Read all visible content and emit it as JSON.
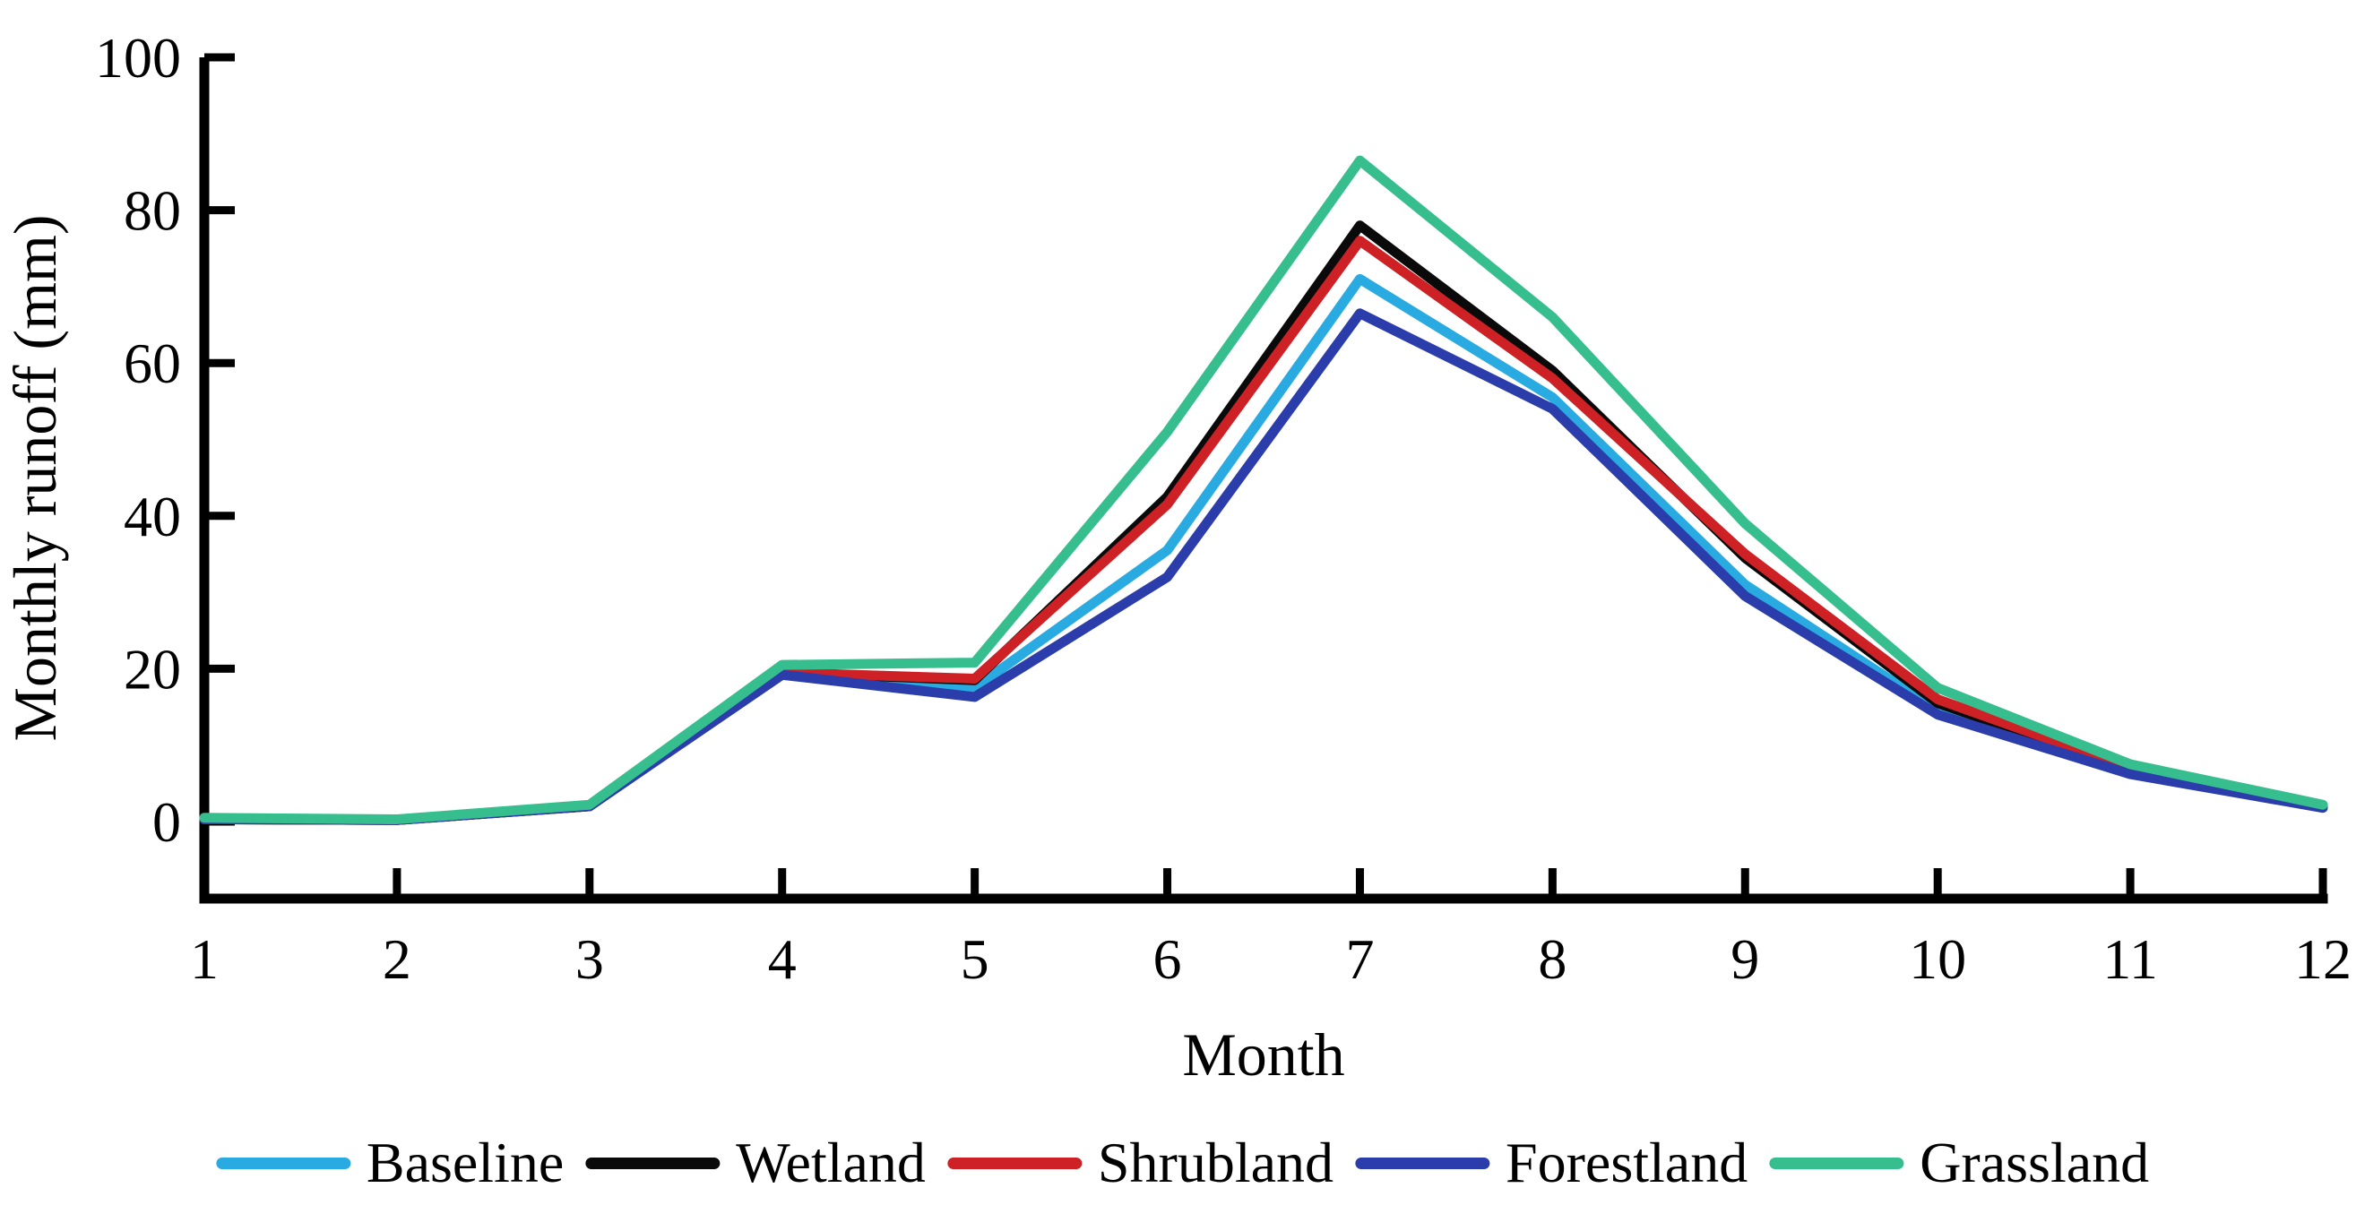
{
  "figure": {
    "background_color": "#ffffff",
    "axis_color": "#000000"
  },
  "chart_data": {
    "type": "line",
    "title": "",
    "xlabel": "Month",
    "ylabel": "Monthly runoff (mm)",
    "x": [
      1,
      2,
      3,
      4,
      5,
      6,
      7,
      8,
      9,
      10,
      11,
      12
    ],
    "xticks": [
      1,
      2,
      3,
      4,
      5,
      6,
      7,
      8,
      9,
      10,
      11,
      12
    ],
    "yticks": [
      0,
      20,
      40,
      60,
      80,
      100
    ],
    "xlim": [
      1,
      12
    ],
    "ylim": [
      -10,
      100
    ],
    "grid": false,
    "legend_position": "bottom",
    "series": [
      {
        "name": "Baseline",
        "color": "#29abe2",
        "values": [
          0.3,
          0.2,
          2.0,
          19.3,
          17.5,
          35.5,
          71.0,
          55.5,
          31.0,
          14.5,
          6.5,
          2.0
        ]
      },
      {
        "name": "Wetland",
        "color": "#0a0a0a",
        "values": [
          0.3,
          0.2,
          2.0,
          19.5,
          18.5,
          42.5,
          78.0,
          59.0,
          34.5,
          15.5,
          6.8,
          2.0
        ]
      },
      {
        "name": "Shrubland",
        "color": "#ce2126",
        "values": [
          0.3,
          0.2,
          2.0,
          19.5,
          18.7,
          41.5,
          76.0,
          58.0,
          35.0,
          16.0,
          7.0,
          2.1
        ]
      },
      {
        "name": "Forestland",
        "color": "#2b3cab",
        "values": [
          0.3,
          0.2,
          2.0,
          19.2,
          16.3,
          32.0,
          66.5,
          54.0,
          29.5,
          14.0,
          6.2,
          1.8
        ]
      },
      {
        "name": "Grassland",
        "color": "#36be8e",
        "values": [
          0.5,
          0.3,
          2.2,
          20.5,
          20.8,
          51.0,
          86.5,
          66.0,
          39.0,
          17.5,
          7.5,
          2.2
        ]
      }
    ]
  }
}
